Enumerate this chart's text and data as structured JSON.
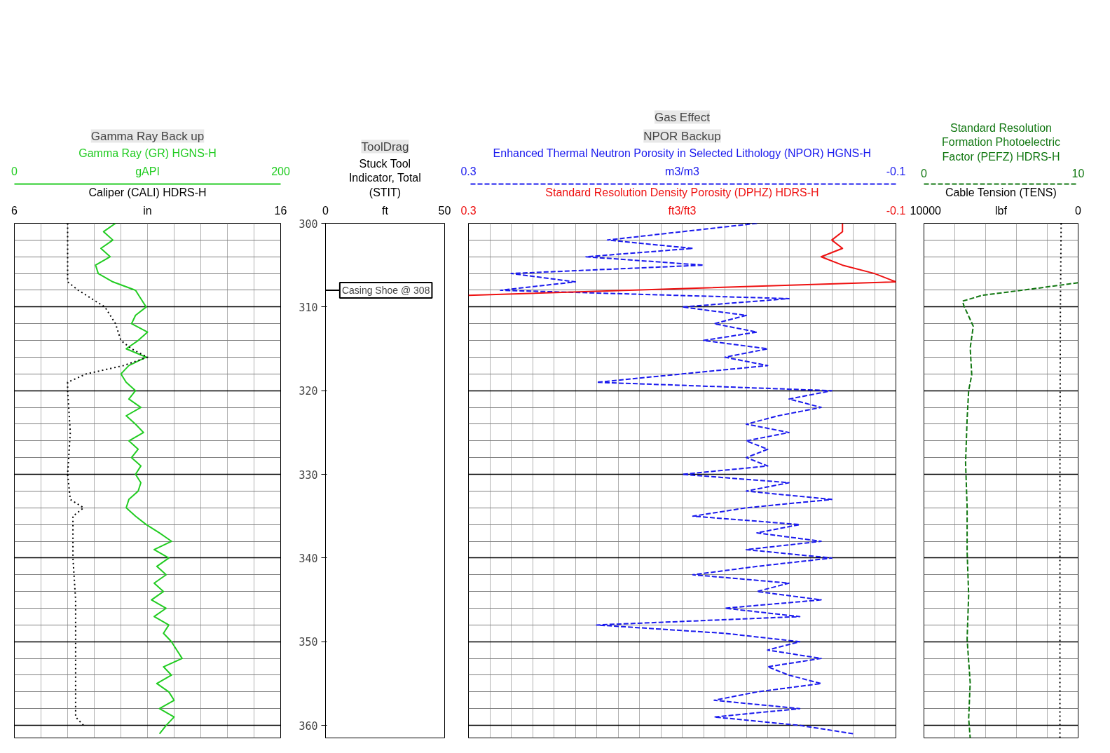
{
  "chart_data": [
    {
      "type": "line",
      "tick_labels": "x",
      "grid": true,
      "xlim": [
        0,
        200
      ],
      "xticks": [
        0,
        {
          "value": 100,
          "label": "gAPI"
        },
        200
      ],
      "x2lim": [
        6,
        16
      ],
      "x2ticks": [
        6,
        {
          "value": 11,
          "label": "in"
        },
        16
      ],
      "ylim": [
        361.5,
        300
      ],
      "yticks": [
        300,
        310,
        320,
        330,
        340,
        350,
        360
      ],
      "annotations": [
        "Gamma Ray Back up"
      ],
      "series": [
        {
          "name": "Gamma Ray (GR) HGNS-H",
          "color": "#22cc22",
          "line_style": "solid",
          "x": [
            76,
            67,
            74,
            65,
            72,
            61,
            63,
            74,
            91,
            95,
            99,
            91,
            88,
            100,
            93,
            84,
            99,
            86,
            80,
            84,
            91,
            86,
            95,
            84,
            91,
            97,
            86,
            93,
            88,
            95,
            91,
            95,
            93,
            86,
            84,
            91,
            99,
            109,
            118,
            105,
            116,
            107,
            114,
            105,
            112,
            103,
            114,
            105,
            116,
            112,
            118,
            122,
            126,
            112,
            118,
            107,
            116,
            120,
            109,
            120,
            114,
            109
          ],
          "values": [
            300,
            301,
            302,
            303,
            304,
            305,
            306,
            307,
            308,
            309,
            310,
            311,
            312,
            313,
            314,
            315,
            316,
            317,
            318,
            319,
            320,
            321,
            322,
            323,
            324,
            325,
            326,
            327,
            328,
            329,
            330,
            331,
            332,
            333,
            334,
            335,
            336,
            337,
            338,
            339,
            340,
            341,
            342,
            343,
            344,
            345,
            346,
            347,
            348,
            349,
            350,
            351,
            352,
            353,
            354,
            355,
            356,
            357,
            358,
            359,
            360,
            361
          ]
        },
        {
          "name": "Caliper (CALI) HDRS-H",
          "color": "#000000",
          "line_style": "dotted",
          "axis": "x2",
          "x": [
            8.0,
            8.0,
            8.4,
            8.9,
            9.4,
            9.8,
            10.0,
            10.4,
            11.0,
            10.1,
            8.7,
            8.0,
            8.0,
            8.1,
            8.0,
            8.1,
            8.6,
            8.2,
            8.2,
            8.3,
            8.3,
            8.3,
            8.3,
            8.6
          ],
          "values": [
            300,
            307,
            308,
            309,
            310,
            312,
            314,
            315,
            316,
            317,
            318,
            319,
            320,
            325,
            330,
            333,
            334,
            335,
            340,
            345,
            350,
            355,
            359,
            360
          ]
        }
      ]
    },
    {
      "type": "line",
      "xlabel": "Stuck Tool Indicator, Total (STIT)",
      "xlim": [
        0,
        50
      ],
      "xticks": [
        0,
        {
          "value": 25,
          "label": "ft"
        },
        50
      ],
      "ylim": [
        361.5,
        300
      ],
      "yticks": [
        300,
        310,
        320,
        330,
        340,
        350,
        360
      ],
      "annotations": [
        "ToolDrag"
      ],
      "ref_lines": [
        {
          "axis": "y",
          "value": 308,
          "label": "Casing Shoe @ 308"
        }
      ]
    },
    {
      "type": "line",
      "tick_labels": "x",
      "grid": true,
      "xlim": [
        0.3,
        -0.1
      ],
      "xticks": [
        0.3,
        {
          "value": 0.1,
          "label": "m3/m3"
        },
        -0.1
      ],
      "x2lim": [
        0.3,
        -0.1
      ],
      "x2ticks": [
        0.3,
        {
          "value": 0.1,
          "label": "ft3/ft3"
        },
        -0.1
      ],
      "ylim": [
        361.5,
        300
      ],
      "yticks": [
        300,
        310,
        320,
        330,
        340,
        350,
        360
      ],
      "annotations": [
        "NPOR Backup",
        "Gas Effect"
      ],
      "series": [
        {
          "name": "Enhanced Thermal Neutron Porosity in Selected Lithology (NPOR) HGNS-H",
          "color": "#1a1aee",
          "line_style": "dashed",
          "x": [
            0.03,
            0.1,
            0.17,
            0.09,
            0.19,
            0.08,
            0.26,
            0.2,
            0.27,
            0.0,
            0.1,
            0.04,
            0.07,
            0.03,
            0.08,
            0.02,
            0.06,
            0.02,
            0.1,
            0.18,
            -0.04,
            0.0,
            -0.03,
            0.01,
            0.04,
            0.0,
            0.04,
            0.02,
            0.04,
            0.02,
            0.1,
            0.0,
            0.04,
            -0.04,
            0.04,
            0.09,
            -0.01,
            0.03,
            -0.03,
            0.04,
            -0.04,
            0.03,
            0.09,
            0.0,
            0.03,
            -0.03,
            0.06,
            -0.01,
            0.18,
            0.06,
            -0.01,
            0.02,
            -0.03,
            0.02,
            0.0,
            -0.03,
            0.03,
            0.07,
            -0.01,
            0.07,
            -0.01,
            -0.06
          ],
          "values": [
            300,
            301,
            302,
            303,
            304,
            305,
            306,
            307,
            308,
            309,
            310,
            311,
            312,
            313,
            314,
            315,
            316,
            317,
            318,
            319,
            320,
            321,
            322,
            323,
            324,
            325,
            326,
            327,
            328,
            329,
            330,
            331,
            332,
            333,
            334,
            335,
            336,
            337,
            338,
            339,
            340,
            341,
            342,
            343,
            344,
            345,
            346,
            347,
            348,
            349,
            350,
            351,
            352,
            353,
            354,
            355,
            356,
            357,
            358,
            359,
            360,
            361
          ]
        },
        {
          "name": "Standard Resolution Density Porosity (DPHZ) HDRS-H",
          "color": "#ee1111",
          "line_style": "solid",
          "axis": "x2",
          "x": [
            -0.05,
            -0.05,
            -0.04,
            -0.05,
            -0.03,
            -0.05,
            -0.08,
            -0.1,
            0.3
          ],
          "values": [
            300,
            301,
            302,
            303,
            304,
            305,
            306,
            307,
            308.6
          ]
        }
      ]
    },
    {
      "type": "line",
      "tick_labels": "x",
      "grid": true,
      "xlim": [
        0,
        10
      ],
      "xticks": [
        0,
        10
      ],
      "x2lim": [
        10000,
        0
      ],
      "x2ticks": [
        10000,
        {
          "value": 5000,
          "label": "lbf"
        },
        0
      ],
      "ylim": [
        361.5,
        300
      ],
      "yticks": [
        300,
        310,
        320,
        330,
        340,
        350,
        360
      ],
      "series": [
        {
          "name": "Standard Resolution Formation Photoelectric Factor (PEFZ) HDRS-H",
          "color": "#117711",
          "line_style": "dashed",
          "x": [
            10,
            7.2,
            3.8,
            2.5,
            2.6,
            3.2,
            3.0,
            3.1,
            2.9,
            2.8,
            2.7,
            2.8,
            2.8,
            2.9,
            2.8,
            3.0,
            2.9,
            3.0
          ],
          "values": [
            307.1,
            307.8,
            308.6,
            309.3,
            309.9,
            312.3,
            314.9,
            318.1,
            320,
            323.4,
            328.6,
            333.9,
            339.2,
            344.4,
            349.7,
            354.9,
            359.2,
            361.5
          ]
        },
        {
          "name": "Cable Tension (TENS)",
          "color": "#000000",
          "line_style": "dotted",
          "axis": "x2",
          "x": [
            1100,
            1150,
            1180,
            1180
          ],
          "values": [
            300,
            310,
            330,
            361.5
          ]
        }
      ]
    }
  ]
}
